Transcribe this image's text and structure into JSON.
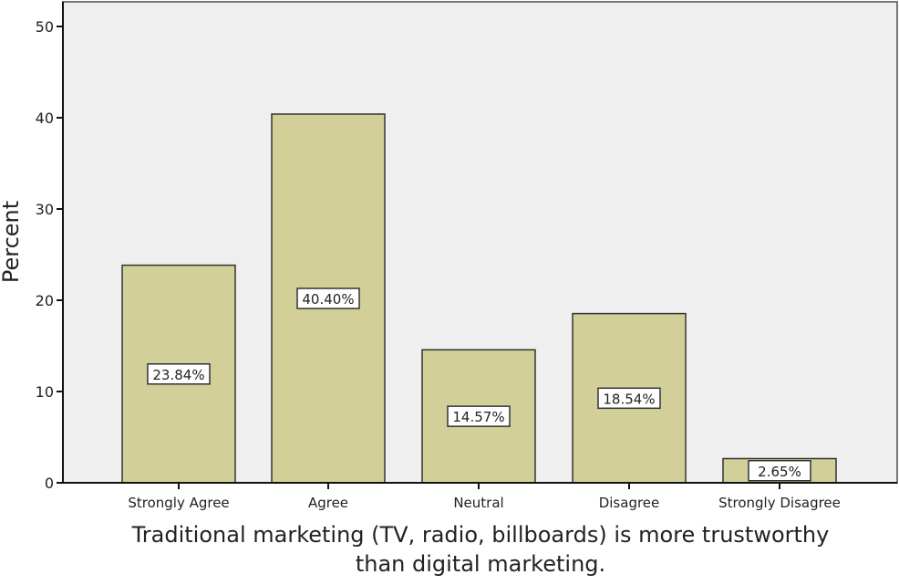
{
  "chart_data": {
    "type": "bar",
    "title": "",
    "xlabel": "Traditional marketing (TV, radio, billboards) is more trustworthy than digital marketing.",
    "xlabel_lines": [
      "Traditional marketing (TV, radio, billboards) is more trustworthy",
      "than digital marketing."
    ],
    "ylabel": "Percent",
    "ylim": [
      0,
      50
    ],
    "yticks": [
      0,
      10,
      20,
      30,
      40,
      50
    ],
    "categories": [
      "Strongly Agree",
      "Agree",
      "Neutral",
      "Disagree",
      "Strongly Disagree"
    ],
    "values": [
      23.84,
      40.4,
      14.57,
      18.54,
      2.65
    ],
    "data_labels": [
      "23.84%",
      "40.40%",
      "14.57%",
      "18.54%",
      "2.65%"
    ],
    "grid": false,
    "colors": {
      "bar": "#d3cf98",
      "plot_bg": "#efefef",
      "edge": "#333333"
    }
  }
}
